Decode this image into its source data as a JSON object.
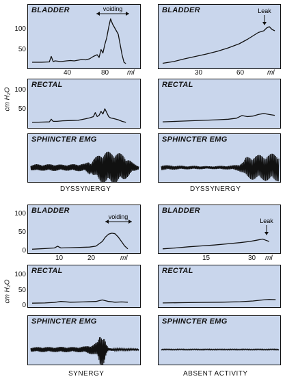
{
  "y_axis_label": "cm H₂O",
  "x_unit": "ml",
  "titles": {
    "bladder": "BLADDER",
    "rectal": "RECTAL",
    "emg": "SPHINCTER EMG"
  },
  "annotations": {
    "voiding": "voiding",
    "leak": "Leak"
  },
  "captions": {
    "top_left": "DYSSYNERGY",
    "top_right": "DYSSYNERGY",
    "bottom_left": "SYNERGY",
    "bottom_right": "ABSENT ACTIVITY"
  },
  "ticks": {
    "y_top": [
      "100",
      "50"
    ],
    "y_rectal": [
      "100",
      "50"
    ],
    "y_bottom": [
      "100",
      "50",
      "0"
    ],
    "y_bottom_rectal": [
      "100",
      "50",
      "0"
    ],
    "x_top_left": [
      "40",
      "80"
    ],
    "x_top_right": [
      "30",
      "60"
    ],
    "x_bottom_left": [
      "10",
      "20"
    ],
    "x_bottom_right": [
      "15",
      "30"
    ]
  },
  "chart_data": [
    {
      "type": "line",
      "panel": "top-left-bladder",
      "ylim": [
        0,
        140
      ],
      "xlim": [
        0,
        110
      ],
      "x": [
        0,
        10,
        18,
        20,
        22,
        24,
        30,
        36,
        40,
        44,
        48,
        52,
        56,
        60,
        64,
        68,
        70,
        72,
        74,
        76,
        78,
        80,
        82,
        84,
        86,
        88,
        90,
        92,
        94,
        96,
        98
      ],
      "values": [
        8,
        8,
        9,
        25,
        10,
        12,
        10,
        12,
        13,
        12,
        14,
        16,
        15,
        18,
        25,
        30,
        22,
        45,
        35,
        60,
        80,
        110,
        135,
        120,
        110,
        100,
        90,
        60,
        30,
        8,
        4
      ]
    },
    {
      "type": "line",
      "panel": "top-right-bladder",
      "ylim": [
        0,
        140
      ],
      "xlim": [
        0,
        85
      ],
      "x": [
        0,
        8,
        16,
        24,
        32,
        40,
        48,
        56,
        62,
        66,
        70,
        74,
        76,
        78,
        80,
        82
      ],
      "values": [
        5,
        10,
        18,
        25,
        32,
        40,
        50,
        62,
        75,
        85,
        95,
        100,
        108,
        112,
        104,
        100
      ]
    },
    {
      "type": "line",
      "panel": "top-left-rectal",
      "ylim": [
        0,
        125
      ],
      "xlim": [
        0,
        110
      ],
      "x": [
        0,
        10,
        18,
        20,
        22,
        26,
        32,
        40,
        48,
        56,
        60,
        64,
        66,
        68,
        70,
        72,
        74,
        76,
        78,
        80,
        82,
        86,
        90,
        94,
        98
      ],
      "values": [
        8,
        9,
        10,
        20,
        12,
        12,
        14,
        15,
        16,
        22,
        25,
        30,
        45,
        30,
        35,
        50,
        40,
        60,
        45,
        30,
        25,
        22,
        18,
        12,
        8
      ]
    },
    {
      "type": "line",
      "panel": "top-right-rectal",
      "ylim": [
        0,
        125
      ],
      "xlim": [
        0,
        85
      ],
      "x": [
        0,
        10,
        20,
        30,
        40,
        48,
        54,
        58,
        62,
        66,
        70,
        74,
        78,
        82
      ],
      "values": [
        10,
        12,
        14,
        16,
        18,
        20,
        24,
        34,
        30,
        32,
        38,
        42,
        38,
        35
      ]
    },
    {
      "type": "line",
      "panel": "bottom-left-bladder",
      "ylim": [
        0,
        120
      ],
      "xlim": [
        0,
        33
      ],
      "x": [
        0,
        4,
        7,
        8,
        9,
        12,
        15,
        18,
        20,
        22,
        23,
        24,
        25,
        26,
        27,
        28,
        29,
        30
      ],
      "values": [
        4,
        6,
        8,
        14,
        8,
        9,
        10,
        11,
        14,
        30,
        45,
        55,
        58,
        56,
        45,
        30,
        15,
        5
      ]
    },
    {
      "type": "line",
      "panel": "bottom-right-bladder",
      "ylim": [
        0,
        120
      ],
      "xlim": [
        0,
        36
      ],
      "x": [
        0,
        4,
        8,
        12,
        16,
        20,
        24,
        27,
        29,
        31,
        32,
        33
      ],
      "values": [
        5,
        8,
        12,
        15,
        18,
        22,
        26,
        30,
        34,
        38,
        34,
        30
      ]
    },
    {
      "type": "line",
      "panel": "bottom-left-rectal",
      "ylim": [
        0,
        120
      ],
      "xlim": [
        0,
        33
      ],
      "x": [
        0,
        4,
        7,
        9,
        12,
        16,
        20,
        22,
        24,
        26,
        28,
        30
      ],
      "values": [
        5,
        6,
        8,
        12,
        9,
        10,
        12,
        18,
        12,
        9,
        10,
        9
      ]
    },
    {
      "type": "line",
      "panel": "bottom-right-rectal",
      "ylim": [
        0,
        120
      ],
      "xlim": [
        0,
        36
      ],
      "x": [
        0,
        6,
        12,
        18,
        24,
        28,
        31,
        33,
        35
      ],
      "values": [
        6,
        7,
        8,
        9,
        11,
        14,
        18,
        20,
        19
      ]
    },
    {
      "type": "area",
      "panel": "top-left-emg",
      "ylim": [
        0,
        1
      ],
      "xlim": [
        0,
        100
      ],
      "x": [
        0,
        5,
        10,
        20,
        30,
        40,
        50,
        54,
        56,
        58,
        62,
        66,
        70,
        74,
        78,
        82,
        86,
        90,
        94,
        98,
        100
      ],
      "values": [
        0.15,
        0.2,
        0.18,
        0.2,
        0.17,
        0.2,
        0.22,
        0.4,
        0.3,
        0.5,
        0.7,
        0.9,
        0.95,
        0.9,
        0.95,
        0.85,
        0.75,
        0.55,
        0.3,
        0.15,
        0.1
      ]
    },
    {
      "type": "area",
      "panel": "top-right-emg",
      "ylim": [
        0,
        1
      ],
      "xlim": [
        0,
        100
      ],
      "x": [
        0,
        10,
        20,
        30,
        40,
        50,
        60,
        66,
        70,
        72,
        76,
        80,
        86,
        92,
        96,
        100
      ],
      "values": [
        0.15,
        0.12,
        0.1,
        0.1,
        0.08,
        0.1,
        0.12,
        0.2,
        0.35,
        0.6,
        0.7,
        0.72,
        0.75,
        0.8,
        0.82,
        0.8
      ]
    },
    {
      "type": "area",
      "panel": "bottom-left-emg",
      "ylim": [
        0,
        1
      ],
      "xlim": [
        0,
        100
      ],
      "x": [
        0,
        10,
        20,
        30,
        40,
        50,
        58,
        62,
        64,
        66,
        68,
        70,
        72,
        80,
        90,
        100
      ],
      "values": [
        0.12,
        0.15,
        0.14,
        0.16,
        0.14,
        0.18,
        0.3,
        0.45,
        0.9,
        0.95,
        0.8,
        0.3,
        0.08,
        0.06,
        0.05,
        0.04
      ]
    },
    {
      "type": "area",
      "panel": "bottom-right-emg",
      "ylim": [
        0,
        1
      ],
      "xlim": [
        0,
        100
      ],
      "x": [
        0,
        100
      ],
      "values": [
        0.03,
        0.03
      ]
    }
  ]
}
